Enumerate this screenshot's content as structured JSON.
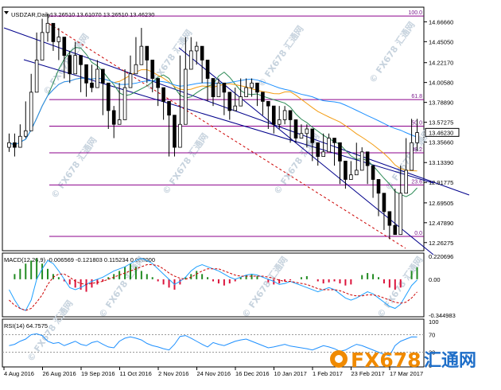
{
  "main_panel": {
    "symbol_label": "USDZAR,Daily",
    "ohlc": "13.26510 13.61070 13.26510 13.46230"
  },
  "macd_panel": {
    "label": "MACD(12,26,9) -0.006569 -0.121803 0.115234 0.000000"
  },
  "rsi_panel": {
    "label": "RSI(14) 64.7575"
  },
  "watermark": {
    "text": "© FX678 汇通网"
  },
  "logo": {
    "fx": "FX678",
    "cn": "汇通网"
  },
  "colors": {
    "candle": "#000000",
    "ma_fast": "#2e8b57",
    "ma_mid": "#f39c12",
    "ma_slow": "#1e90ff",
    "channel": "#00008b",
    "channel_dash": "#cc0000",
    "fib": "#8b008b",
    "macd_line": "#1ea0ff",
    "macd_signal": "#cc0000",
    "macd_hist_up": "#228b22",
    "macd_hist_down": "#dc143c",
    "rsi_line": "#1e90ff",
    "level_price": "#000000"
  },
  "chart_data": [
    {
      "type": "candlestick",
      "symbol": "USDZAR",
      "timeframe": "Daily",
      "ylim": [
        12.2,
        14.8
      ],
      "y_ticks": [
        "14.66660",
        "14.45050",
        "14.22170",
        "14.00580",
        "13.78890",
        "13.57275",
        "13.35660",
        "13.13390",
        "12.91775",
        "12.69505",
        "12.47890",
        "12.26275"
      ],
      "y_tick_values": [
        14.6666,
        14.4505,
        14.2217,
        14.0058,
        13.7889,
        13.57275,
        13.3566,
        13.1339,
        12.91775,
        12.69505,
        12.4789,
        12.26275
      ],
      "current_price": "13.46230",
      "current_price_value": 13.4623,
      "x_ticks": [
        "4 Aug 2016",
        "26 Aug 2016",
        "19 Sep 2016",
        "11 Oct 2016",
        "2 Nov 2016",
        "24 Nov 2016",
        "16 Dec 2016",
        "10 Jan 2017",
        "1 Feb 2017",
        "23 Feb 2017",
        "17 Mar 2017"
      ],
      "fib_levels": [
        {
          "label": "100.0",
          "value": 14.73
        },
        {
          "label": "61.8",
          "value": 13.82
        },
        {
          "label": "50.0",
          "value": 13.53
        },
        {
          "label": "38.2",
          "value": 13.24
        },
        {
          "label": "23.6",
          "value": 12.89
        },
        {
          "label": "0.0",
          "value": 12.33
        }
      ],
      "close": [
        13.35,
        13.3,
        13.42,
        13.48,
        13.9,
        14.25,
        14.55,
        14.65,
        14.45,
        14.5,
        14.3,
        14.1,
        14.3,
        14.2,
        14.0,
        13.95,
        14.15,
        14.0,
        13.7,
        13.55,
        13.6,
        13.95,
        14.1,
        14.2,
        14.4,
        14.25,
        14.05,
        13.95,
        13.8,
        13.65,
        13.3,
        13.55,
        14.15,
        14.35,
        14.4,
        14.25,
        14.05,
        13.85,
        14.0,
        13.9,
        13.7,
        13.75,
        13.85,
        13.95,
        14.0,
        13.9,
        13.8,
        13.75,
        13.55,
        13.6,
        13.7,
        13.6,
        13.4,
        13.45,
        13.5,
        13.35,
        13.2,
        13.25,
        13.4,
        13.35,
        13.15,
        12.95,
        13.0,
        13.05,
        13.25,
        13.1,
        12.95,
        12.8,
        12.6,
        12.45,
        12.35,
        12.8,
        13.05,
        13.35,
        13.46
      ],
      "high": [
        13.45,
        13.45,
        13.55,
        13.8,
        14.1,
        14.55,
        14.7,
        14.75,
        14.6,
        14.6,
        14.45,
        14.35,
        14.45,
        14.3,
        14.15,
        14.2,
        14.25,
        14.1,
        13.85,
        13.75,
        14.0,
        14.15,
        14.3,
        14.5,
        14.6,
        14.35,
        14.2,
        14.05,
        13.9,
        13.75,
        13.6,
        14.3,
        14.5,
        14.5,
        14.45,
        14.3,
        14.1,
        14.05,
        14.05,
        13.95,
        13.85,
        13.95,
        14.05,
        14.05,
        14.05,
        13.95,
        13.85,
        13.8,
        13.7,
        13.75,
        13.75,
        13.65,
        13.55,
        13.55,
        13.55,
        13.4,
        13.35,
        13.45,
        13.45,
        13.4,
        13.2,
        13.1,
        13.15,
        13.35,
        13.3,
        13.15,
        13.0,
        12.85,
        12.65,
        12.5,
        12.85,
        13.1,
        13.4,
        13.61,
        13.61
      ],
      "low": [
        13.25,
        13.2,
        13.3,
        13.4,
        13.8,
        14.1,
        14.4,
        14.45,
        14.35,
        14.25,
        14.05,
        14.0,
        14.1,
        13.9,
        13.85,
        13.9,
        13.95,
        13.65,
        13.5,
        13.4,
        13.55,
        13.9,
        14.0,
        14.15,
        14.2,
        14.0,
        13.9,
        13.75,
        13.6,
        13.2,
        13.2,
        13.5,
        14.05,
        14.15,
        14.2,
        14.0,
        13.8,
        13.75,
        13.85,
        13.65,
        13.6,
        13.7,
        13.8,
        13.9,
        13.85,
        13.75,
        13.65,
        13.5,
        13.45,
        13.5,
        13.55,
        13.35,
        13.35,
        13.4,
        13.3,
        13.15,
        13.1,
        13.2,
        13.3,
        13.1,
        12.9,
        12.85,
        12.95,
        13.0,
        13.05,
        12.9,
        12.75,
        12.55,
        12.4,
        12.3,
        12.35,
        12.8,
        13.0,
        13.26,
        13.26
      ]
    },
    {
      "type": "macd",
      "params": "12,26,9",
      "values": {
        "main": -0.006569,
        "signal": -0.121803,
        "hist": 0.115234,
        "extra": 0.0
      },
      "y_ticks": [
        "0.220696",
        "0.00",
        "-0.344983"
      ],
      "ylim": [
        -0.344983,
        0.220696
      ],
      "hist": [
        0.0,
        0.05,
        0.1,
        0.15,
        0.18,
        0.2,
        0.15,
        0.1,
        0.05,
        0.02,
        -0.02,
        -0.05,
        -0.08,
        -0.1,
        -0.12,
        -0.08,
        -0.05,
        -0.02,
        0.02,
        0.05,
        0.08,
        0.12,
        0.15,
        0.12,
        0.08,
        0.05,
        0.02,
        -0.02,
        -0.05,
        -0.08,
        -0.1,
        -0.05,
        0.02,
        0.05,
        0.08,
        0.05,
        0.02,
        -0.02,
        -0.04,
        -0.06,
        -0.04,
        -0.02,
        0.02,
        0.04,
        0.05,
        0.03,
        0.0,
        -0.03,
        -0.05,
        -0.04,
        -0.02,
        -0.01,
        0.0,
        0.02,
        0.03,
        0.0,
        -0.02,
        -0.04,
        -0.03,
        -0.02,
        -0.04,
        -0.06,
        -0.05,
        0.0,
        0.04,
        0.06,
        0.05,
        0.02,
        -0.04,
        -0.08,
        -0.1,
        -0.08,
        0.0,
        0.08,
        0.115
      ],
      "macd_line": [
        -0.1,
        -0.2,
        -0.28,
        -0.3,
        -0.2,
        0.0,
        0.1,
        0.18,
        0.15,
        0.08,
        0.0,
        -0.08,
        -0.1,
        -0.08,
        -0.05,
        -0.02,
        0.0,
        0.02,
        0.05,
        0.08,
        0.1,
        0.12,
        0.15,
        0.18,
        0.2,
        0.18,
        0.15,
        0.1,
        0.05,
        0.0,
        -0.05,
        -0.02,
        0.02,
        0.08,
        0.12,
        0.14,
        0.12,
        0.1,
        0.08,
        0.05,
        0.02,
        0.0,
        0.02,
        0.04,
        0.05,
        0.04,
        0.02,
        0.0,
        -0.02,
        -0.05,
        -0.04,
        -0.02,
        -0.04,
        -0.06,
        -0.08,
        -0.1,
        -0.12,
        -0.1,
        -0.08,
        -0.1,
        -0.14,
        -0.18,
        -0.2,
        -0.18,
        -0.15,
        -0.12,
        -0.14,
        -0.18,
        -0.22,
        -0.26,
        -0.28,
        -0.24,
        -0.15,
        -0.06,
        -0.006569
      ],
      "signal_line": [
        -0.2,
        -0.25,
        -0.28,
        -0.3,
        -0.28,
        -0.22,
        -0.15,
        -0.05,
        0.02,
        0.05,
        0.05,
        0.02,
        -0.02,
        -0.04,
        -0.05,
        -0.04,
        -0.03,
        -0.02,
        0.0,
        0.02,
        0.04,
        0.06,
        0.08,
        0.1,
        0.12,
        0.14,
        0.14,
        0.13,
        0.1,
        0.06,
        0.03,
        0.01,
        0.0,
        0.02,
        0.05,
        0.08,
        0.1,
        0.1,
        0.1,
        0.08,
        0.06,
        0.04,
        0.03,
        0.03,
        0.03,
        0.03,
        0.03,
        0.02,
        0.01,
        -0.01,
        -0.02,
        -0.02,
        -0.03,
        -0.04,
        -0.05,
        -0.07,
        -0.09,
        -0.1,
        -0.1,
        -0.1,
        -0.11,
        -0.13,
        -0.15,
        -0.16,
        -0.16,
        -0.15,
        -0.15,
        -0.16,
        -0.18,
        -0.2,
        -0.22,
        -0.23,
        -0.22,
        -0.18,
        -0.121803
      ]
    },
    {
      "type": "rsi",
      "period": 14,
      "value": 64.7575,
      "y_ticks": [
        "100",
        "70",
        "30",
        "0"
      ],
      "ylim": [
        0,
        100
      ],
      "values": [
        45,
        48,
        55,
        60,
        70,
        72,
        68,
        55,
        50,
        52,
        45,
        50,
        55,
        48,
        45,
        52,
        55,
        48,
        42,
        40,
        55,
        62,
        65,
        62,
        58,
        50,
        45,
        42,
        38,
        35,
        48,
        66,
        68,
        62,
        55,
        48,
        42,
        52,
        48,
        45,
        50,
        55,
        58,
        60,
        55,
        50,
        45,
        40,
        42,
        45,
        48,
        44,
        42,
        40,
        38,
        35,
        40,
        45,
        42,
        38,
        32,
        35,
        42,
        48,
        45,
        40,
        35,
        30,
        25,
        22,
        45,
        55,
        60,
        65,
        64.7575
      ]
    }
  ]
}
